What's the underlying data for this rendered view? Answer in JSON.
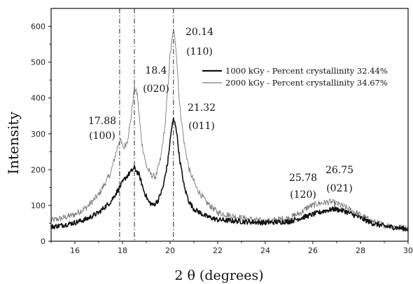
{
  "chart_data": {
    "type": "line",
    "title": "",
    "xlabel": "2 θ (degrees)",
    "ylabel": "Intensity",
    "xlim": [
      15,
      30
    ],
    "ylim": [
      0,
      650
    ],
    "xticks": [
      16,
      18,
      20,
      22,
      24,
      26,
      28,
      30
    ],
    "yticks": [
      0,
      100,
      200,
      300,
      400,
      500,
      600
    ],
    "grid": false,
    "legend_position": "upper-right",
    "reference_lines_x": [
      17.88,
      18.5,
      20.14
    ],
    "series": [
      {
        "name": "1000 kGy - Percent crystallinity 32.44%",
        "color": "#111111",
        "points": [
          [
            15,
            40
          ],
          [
            15.5,
            45
          ],
          [
            16,
            52
          ],
          [
            16.5,
            62
          ],
          [
            17,
            80
          ],
          [
            17.5,
            110
          ],
          [
            17.88,
            150
          ],
          [
            18.1,
            175
          ],
          [
            18.3,
            190
          ],
          [
            18.5,
            205
          ],
          [
            18.7,
            185
          ],
          [
            18.9,
            140
          ],
          [
            19.1,
            110
          ],
          [
            19.3,
            100
          ],
          [
            19.5,
            115
          ],
          [
            19.7,
            150
          ],
          [
            19.9,
            220
          ],
          [
            20.05,
            310
          ],
          [
            20.14,
            340
          ],
          [
            20.25,
            320
          ],
          [
            20.4,
            230
          ],
          [
            20.6,
            150
          ],
          [
            20.8,
            110
          ],
          [
            21,
            90
          ],
          [
            21.5,
            70
          ],
          [
            22,
            60
          ],
          [
            23,
            55
          ],
          [
            24,
            52
          ],
          [
            25,
            55
          ],
          [
            25.5,
            65
          ],
          [
            26,
            75
          ],
          [
            26.5,
            85
          ],
          [
            26.9,
            90
          ],
          [
            27.3,
            85
          ],
          [
            28,
            65
          ],
          [
            28.5,
            50
          ],
          [
            29,
            42
          ],
          [
            29.5,
            38
          ],
          [
            30,
            34
          ]
        ]
      },
      {
        "name": "2000 kGy - Percent crystallinity 34.67%",
        "color": "#7a7a7a",
        "points": [
          [
            15,
            58
          ],
          [
            15.5,
            65
          ],
          [
            16,
            75
          ],
          [
            16.5,
            95
          ],
          [
            17,
            130
          ],
          [
            17.5,
            190
          ],
          [
            17.7,
            240
          ],
          [
            17.88,
            285
          ],
          [
            18.05,
            260
          ],
          [
            18.2,
            280
          ],
          [
            18.35,
            340
          ],
          [
            18.5,
            430
          ],
          [
            18.62,
            410
          ],
          [
            18.8,
            280
          ],
          [
            19,
            210
          ],
          [
            19.2,
            185
          ],
          [
            19.4,
            180
          ],
          [
            19.6,
            230
          ],
          [
            19.8,
            330
          ],
          [
            20,
            520
          ],
          [
            20.14,
            590
          ],
          [
            20.25,
            540
          ],
          [
            20.4,
            380
          ],
          [
            20.6,
            270
          ],
          [
            20.8,
            200
          ],
          [
            21.1,
            150
          ],
          [
            21.5,
            110
          ],
          [
            22,
            80
          ],
          [
            23,
            65
          ],
          [
            24,
            55
          ],
          [
            25,
            65
          ],
          [
            25.5,
            80
          ],
          [
            25.78,
            95
          ],
          [
            26.2,
            105
          ],
          [
            26.75,
            110
          ],
          [
            27.2,
            100
          ],
          [
            27.8,
            80
          ],
          [
            28.5,
            55
          ],
          [
            29,
            45
          ],
          [
            29.5,
            40
          ],
          [
            30,
            36
          ]
        ]
      }
    ],
    "annotations": [
      {
        "x": 17.88,
        "value": "17.88",
        "index": "(100)"
      },
      {
        "x": 18.4,
        "value": "18.4",
        "index": "(020)"
      },
      {
        "x": 20.14,
        "value": "20.14",
        "index": "(110)"
      },
      {
        "x": 21.32,
        "value": "21.32",
        "index": "(011)"
      },
      {
        "x": 25.78,
        "value": "25.78",
        "index": "(120)"
      },
      {
        "x": 26.75,
        "value": "26.75",
        "index": "(021)"
      }
    ]
  }
}
